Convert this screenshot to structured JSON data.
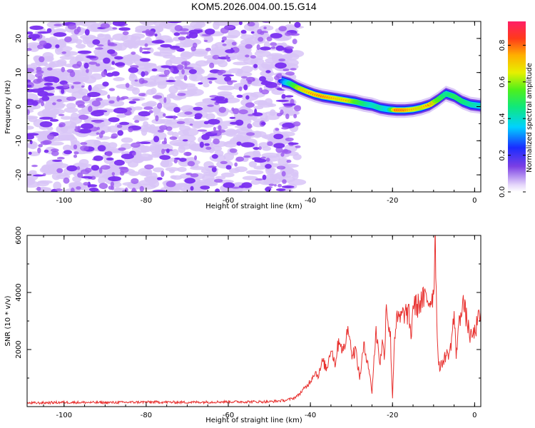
{
  "page": {
    "title": "KOM5.2026.004.00.15.G14"
  },
  "colors": {
    "snr_line": "#e8312f",
    "scatter_blob": "#9b59f0",
    "scatter_light": "#d8c4f7",
    "axis": "#000000"
  },
  "chart_data": [
    {
      "id": "spectrogram",
      "type": "heatmap",
      "title": "KOM5.2026.004.00.15.G14",
      "xlabel": "Height of straight line (km)",
      "ylabel": "Frequency (Hz)",
      "xlim": [
        -109,
        1.5
      ],
      "ylim": [
        -25,
        25
      ],
      "xticks": [
        -100,
        -80,
        -60,
        -40,
        -20,
        0
      ],
      "xtick_labels": [
        "-100",
        "-80",
        "-60",
        "-40",
        "-20",
        "0"
      ],
      "yticks": [
        -20,
        -10,
        0,
        10,
        20
      ],
      "ytick_labels": [
        "-20",
        "-10",
        "0",
        "10",
        "20"
      ],
      "noise_region_x": [
        -109,
        -43
      ],
      "colorbar": {
        "label": "Normalized spectral amplitude",
        "range": [
          0.0,
          0.93
        ],
        "ticks": [
          0.0,
          0.2,
          0.4,
          0.6,
          0.8
        ],
        "tick_labels": [
          "0.0",
          "0.2",
          "0.4",
          "0.6",
          "0.8"
        ]
      },
      "ridge": {
        "x": [
          -47,
          -45,
          -43,
          -41,
          -39,
          -37,
          -35,
          -33,
          -31,
          -29,
          -27,
          -25,
          -23,
          -21,
          -19,
          -17,
          -15,
          -13,
          -11,
          -9,
          -7,
          -5,
          -3,
          -1,
          1.5
        ],
        "y": [
          7.5,
          6.8,
          5.5,
          4.5,
          3.6,
          3.0,
          2.6,
          2.2,
          1.8,
          1.4,
          0.8,
          0.4,
          -0.4,
          -0.8,
          -1.0,
          -1.0,
          -0.8,
          -0.3,
          0.5,
          2.0,
          3.8,
          3.0,
          1.5,
          0.6,
          0.2
        ],
        "amplitude": [
          0.3,
          0.55,
          0.75,
          0.8,
          0.85,
          0.88,
          0.85,
          0.8,
          0.82,
          0.7,
          0.6,
          0.5,
          0.55,
          0.45,
          0.92,
          0.9,
          0.82,
          0.78,
          0.85,
          0.7,
          0.55,
          0.62,
          0.6,
          0.55,
          0.5
        ]
      }
    },
    {
      "id": "snr",
      "type": "line",
      "xlabel": "Height of straight line (km)",
      "ylabel": "SNR (10 * v/v)",
      "xlim": [
        -109,
        1.5
      ],
      "ylim": [
        0,
        6000
      ],
      "xticks": [
        -100,
        -80,
        -60,
        -40,
        -20,
        0
      ],
      "xtick_labels": [
        "-100",
        "-80",
        "-60",
        "-40",
        "-20",
        "0"
      ],
      "yticks": [
        2000,
        4000,
        6000
      ],
      "ytick_labels": [
        "2000",
        "4000",
        "6000"
      ],
      "series": [
        {
          "name": "SNR",
          "x": [
            -109,
            -100,
            -90,
            -80,
            -70,
            -60,
            -50,
            -46,
            -44,
            -43,
            -42,
            -41,
            -40,
            -39,
            -38,
            -37,
            -36,
            -35,
            -34,
            -33,
            -32,
            -31,
            -30.5,
            -30,
            -29,
            -28,
            -27,
            -26,
            -25,
            -24.5,
            -24,
            -23.5,
            -23,
            -22.5,
            -22,
            -21.5,
            -21,
            -20.5,
            -20,
            -19.5,
            -19,
            -18,
            -17,
            -16,
            -15.5,
            -15,
            -14,
            -13,
            -12,
            -11,
            -10.5,
            -10,
            -9.6,
            -9.2,
            -9,
            -8.5,
            -8,
            -7,
            -6,
            -5,
            -4.5,
            -4,
            -3.5,
            -3,
            -2,
            -1,
            0,
            1.5
          ],
          "values": [
            120,
            150,
            140,
            160,
            150,
            170,
            170,
            220,
            300,
            400,
            550,
            700,
            900,
            1200,
            1100,
            1600,
            1300,
            2100,
            1500,
            2400,
            1900,
            2600,
            2800,
            1800,
            2000,
            1000,
            2100,
            1600,
            500,
            1700,
            2600,
            2100,
            1500,
            2300,
            1700,
            3700,
            2900,
            2400,
            300,
            2500,
            3000,
            3100,
            3300,
            3200,
            2400,
            3600,
            3500,
            3700,
            3800,
            3700,
            3800,
            4000,
            5900,
            3200,
            2000,
            1300,
            1500,
            1800,
            1900,
            3200,
            1800,
            2700,
            3100,
            3800,
            3100,
            2400,
            2600,
            3300
          ]
        }
      ]
    }
  ]
}
